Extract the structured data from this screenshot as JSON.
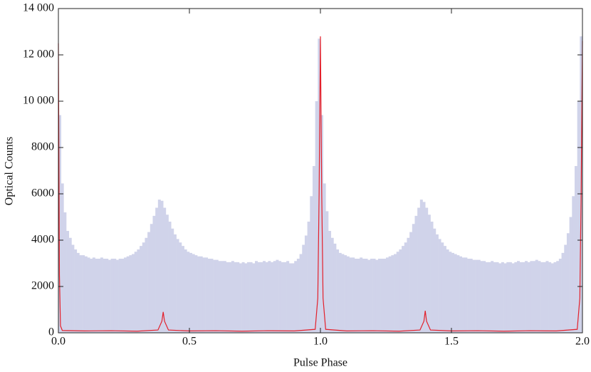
{
  "chart_data": {
    "type": "histogram",
    "xlabel": "Pulse Phase",
    "ylabel": "Optical Counts",
    "color": "#d0d3ea",
    "bins": [
      0,
      0.01,
      0.02,
      0.03,
      0.04,
      0.05,
      0.06,
      0.07,
      0.08,
      0.09,
      0.1,
      0.11,
      0.12,
      0.13,
      0.14,
      0.15,
      0.16,
      0.17,
      0.18,
      0.19,
      0.2,
      0.21,
      0.22,
      0.23,
      0.24,
      0.25,
      0.26,
      0.27,
      0.28,
      0.29,
      0.3,
      0.31,
      0.32,
      0.33,
      0.34,
      0.35,
      0.36,
      0.37,
      0.38,
      0.39,
      0.4,
      0.41,
      0.42,
      0.43,
      0.44,
      0.45,
      0.46,
      0.47,
      0.48,
      0.49,
      0.5,
      0.51,
      0.52,
      0.53,
      0.54,
      0.55,
      0.56,
      0.57,
      0.58,
      0.59,
      0.6,
      0.61,
      0.62,
      0.63,
      0.64,
      0.65,
      0.66,
      0.67,
      0.68,
      0.69,
      0.7,
      0.71,
      0.72,
      0.73,
      0.74,
      0.75,
      0.76,
      0.77,
      0.78,
      0.79,
      0.8,
      0.81,
      0.82,
      0.83,
      0.84,
      0.85,
      0.86,
      0.87,
      0.88,
      0.89,
      0.9,
      0.91,
      0.92,
      0.93,
      0.94,
      0.95,
      0.96,
      0.97,
      0.98,
      0.99,
      1,
      1.01,
      1.02,
      1.03,
      1.04,
      1.05,
      1.06,
      1.07,
      1.08,
      1.09,
      1.1,
      1.11,
      1.12,
      1.13,
      1.14,
      1.15,
      1.16,
      1.17,
      1.18,
      1.19,
      1.2,
      1.21,
      1.22,
      1.23,
      1.24,
      1.25,
      1.26,
      1.27,
      1.28,
      1.29,
      1.3,
      1.31,
      1.32,
      1.33,
      1.34,
      1.35,
      1.36,
      1.37,
      1.38,
      1.39,
      1.4,
      1.41,
      1.42,
      1.43,
      1.44,
      1.45,
      1.46,
      1.47,
      1.48,
      1.49,
      1.5,
      1.51,
      1.52,
      1.53,
      1.54,
      1.55,
      1.56,
      1.57,
      1.58,
      1.59,
      1.6,
      1.61,
      1.62,
      1.63,
      1.64,
      1.65,
      1.66,
      1.67,
      1.68,
      1.69,
      1.7,
      1.71,
      1.72,
      1.73,
      1.74,
      1.75,
      1.76,
      1.77,
      1.78,
      1.79,
      1.8,
      1.81,
      1.82,
      1.83,
      1.84,
      1.85,
      1.86,
      1.87,
      1.88,
      1.89,
      1.9,
      1.91,
      1.92,
      1.93,
      1.94,
      1.95,
      1.96,
      1.97,
      1.98,
      1.99,
      2
    ],
    "values": [
      9400,
      6450,
      5200,
      4400,
      4100,
      3800,
      3600,
      3450,
      3350,
      3350,
      3300,
      3250,
      3200,
      3250,
      3200,
      3200,
      3250,
      3200,
      3200,
      3150,
      3200,
      3200,
      3150,
      3200,
      3200,
      3250,
      3300,
      3350,
      3400,
      3500,
      3600,
      3750,
      3900,
      4100,
      4350,
      4700,
      5050,
      5400,
      5750,
      5700,
      5400,
      5100,
      4800,
      4500,
      4250,
      4050,
      3900,
      3750,
      3600,
      3500,
      3450,
      3400,
      3350,
      3300,
      3300,
      3250,
      3250,
      3200,
      3200,
      3150,
      3150,
      3100,
      3100,
      3100,
      3050,
      3050,
      3100,
      3050,
      3050,
      3000,
      3050,
      3000,
      3050,
      3050,
      3000,
      3100,
      3050,
      3050,
      3100,
      3050,
      3100,
      3050,
      3100,
      3150,
      3100,
      3050,
      3050,
      3100,
      3000,
      3000,
      3100,
      3200,
      3400,
      3800,
      4200,
      4800,
      5900,
      7200,
      10000,
      12700,
      9400,
      6450,
      5250,
      4400,
      4100,
      3850,
      3600,
      3450,
      3400,
      3350,
      3300,
      3250,
      3250,
      3200,
      3200,
      3250,
      3200,
      3200,
      3150,
      3200,
      3200,
      3150,
      3200,
      3200,
      3200,
      3250,
      3300,
      3350,
      3400,
      3500,
      3600,
      3750,
      3900,
      4100,
      4350,
      4700,
      5050,
      5400,
      5750,
      5650,
      5400,
      5100,
      4800,
      4500,
      4250,
      4050,
      3900,
      3750,
      3600,
      3500,
      3450,
      3400,
      3350,
      3300,
      3250,
      3250,
      3200,
      3200,
      3150,
      3150,
      3150,
      3100,
      3100,
      3050,
      3050,
      3100,
      3050,
      3050,
      3000,
      3050,
      3000,
      3050,
      3050,
      3000,
      3050,
      3100,
      3050,
      3050,
      3100,
      3050,
      3100,
      3100,
      3150,
      3100,
      3050,
      3050,
      3100,
      3050,
      3000,
      3050,
      3100,
      3200,
      3450,
      3800,
      4300,
      5000,
      5900,
      7200,
      10000,
      12800
    ],
    "overlay": {
      "type": "line",
      "color": "#e3202b",
      "x": [
        0,
        0.004,
        0.008,
        0.015,
        0.1,
        0.2,
        0.3,
        0.38,
        0.395,
        0.4,
        0.405,
        0.42,
        0.5,
        0.6,
        0.7,
        0.8,
        0.9,
        0.98,
        0.99,
        0.995,
        1,
        1.005,
        1.01,
        1.02,
        1.1,
        1.2,
        1.3,
        1.38,
        1.395,
        1.4,
        1.405,
        1.42,
        1.5,
        1.6,
        1.7,
        1.8,
        1.9,
        1.98,
        1.99,
        1.995,
        2
      ],
      "values": [
        12500,
        2500,
        300,
        100,
        80,
        90,
        70,
        120,
        500,
        900,
        500,
        120,
        80,
        90,
        70,
        90,
        80,
        150,
        1500,
        6000,
        12800,
        6000,
        1500,
        150,
        80,
        90,
        70,
        120,
        500,
        950,
        500,
        120,
        80,
        90,
        70,
        90,
        80,
        150,
        1500,
        6000,
        12600
      ]
    },
    "xlim": [
      0,
      2
    ],
    "ylim": [
      0,
      14000
    ],
    "xticks": [
      {
        "value": 0,
        "label": "0.0"
      },
      0.5,
      {
        "value": 1,
        "label": "1.0"
      },
      1.5,
      {
        "value": 2,
        "label": "2.0"
      }
    ],
    "yticks": [
      0,
      2000,
      4000,
      6000,
      8000,
      {
        "value": 10000,
        "label": "10 000"
      },
      {
        "value": 12000,
        "label": "12 000"
      },
      {
        "value": 14000,
        "label": "14 000"
      }
    ]
  }
}
